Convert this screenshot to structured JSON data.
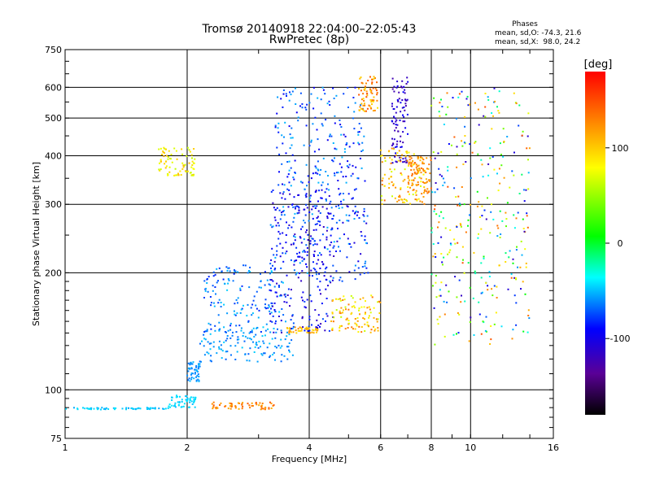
{
  "chart_data": {
    "type": "scatter",
    "title": "Tromsø 20140918 22:04:00–22:05:43",
    "subtitle": "RwPretec (8p)",
    "xlabel": "Frequency [MHz]",
    "ylabel": "Stationary phase Virtual Height [km]",
    "x_scale": "log",
    "y_scale": "log",
    "xlim": [
      1,
      16
    ],
    "ylim": [
      75,
      750
    ],
    "x_ticks": [
      1,
      2,
      4,
      6,
      8,
      10,
      16
    ],
    "y_ticks": [
      75,
      100,
      200,
      300,
      400,
      500,
      600,
      750
    ],
    "grid": true,
    "info": {
      "heading": "Phases",
      "line1": "mean, sd,O: -74.3, 21.6",
      "line2": "mean, sd,X:  98.0, 24.2"
    },
    "colorbar": {
      "label": "[deg]",
      "range": [
        -180,
        180
      ],
      "ticks": [
        -100,
        0,
        100
      ],
      "colormap": "rainbow"
    },
    "trace_groups": [
      {
        "freq": [
          1.0,
          1.8
        ],
        "height": [
          89,
          90
        ],
        "phase": [
          -55,
          -40
        ]
      },
      {
        "freq": [
          1.8,
          2.1
        ],
        "height": [
          90,
          97
        ],
        "phase": [
          -50,
          -40
        ]
      },
      {
        "freq": [
          2.3,
          3.3
        ],
        "height": [
          89,
          93
        ],
        "phase": [
          110,
          150
        ]
      },
      {
        "freq": [
          2.0,
          2.15
        ],
        "height": [
          105,
          118
        ],
        "phase": [
          -70,
          -50
        ]
      },
      {
        "freq": [
          2.15,
          3.7
        ],
        "height": [
          118,
          145
        ],
        "phase": [
          -70,
          -45
        ]
      },
      {
        "freq": [
          2.2,
          3.5
        ],
        "height": [
          140,
          210
        ],
        "phase": [
          -85,
          -45
        ]
      },
      {
        "freq": [
          3.5,
          4.2
        ],
        "height": [
          140,
          145
        ],
        "phase": [
          90,
          130
        ]
      },
      {
        "freq": [
          3.2,
          4.6
        ],
        "height": [
          140,
          330
        ],
        "phase": [
          -120,
          -70
        ]
      },
      {
        "freq": [
          3.2,
          5.6
        ],
        "height": [
          190,
          300
        ],
        "phase": [
          -110,
          -50
        ]
      },
      {
        "freq": [
          3.3,
          5.5
        ],
        "height": [
          300,
          600
        ],
        "phase": [
          -100,
          -50
        ]
      },
      {
        "freq": [
          4.5,
          6.0
        ],
        "height": [
          140,
          175
        ],
        "phase": [
          60,
          140
        ]
      },
      {
        "freq": [
          5.3,
          5.9
        ],
        "height": [
          520,
          640
        ],
        "phase": [
          90,
          150
        ]
      },
      {
        "freq": [
          6.4,
          7.0
        ],
        "height": [
          380,
          640
        ],
        "phase": [
          -130,
          -90
        ]
      },
      {
        "freq": [
          6.0,
          7.8
        ],
        "height": [
          300,
          420
        ],
        "phase": [
          60,
          140
        ]
      },
      {
        "freq": [
          7.0,
          8.0
        ],
        "height": [
          320,
          400
        ],
        "phase": [
          110,
          140
        ]
      },
      {
        "freq": [
          8.0,
          14.0
        ],
        "height": [
          130,
          600
        ],
        "phase": [
          -120,
          150
        ]
      },
      {
        "freq": [
          1.7,
          2.1
        ],
        "height": [
          355,
          420
        ],
        "phase": [
          60,
          110
        ]
      }
    ]
  }
}
